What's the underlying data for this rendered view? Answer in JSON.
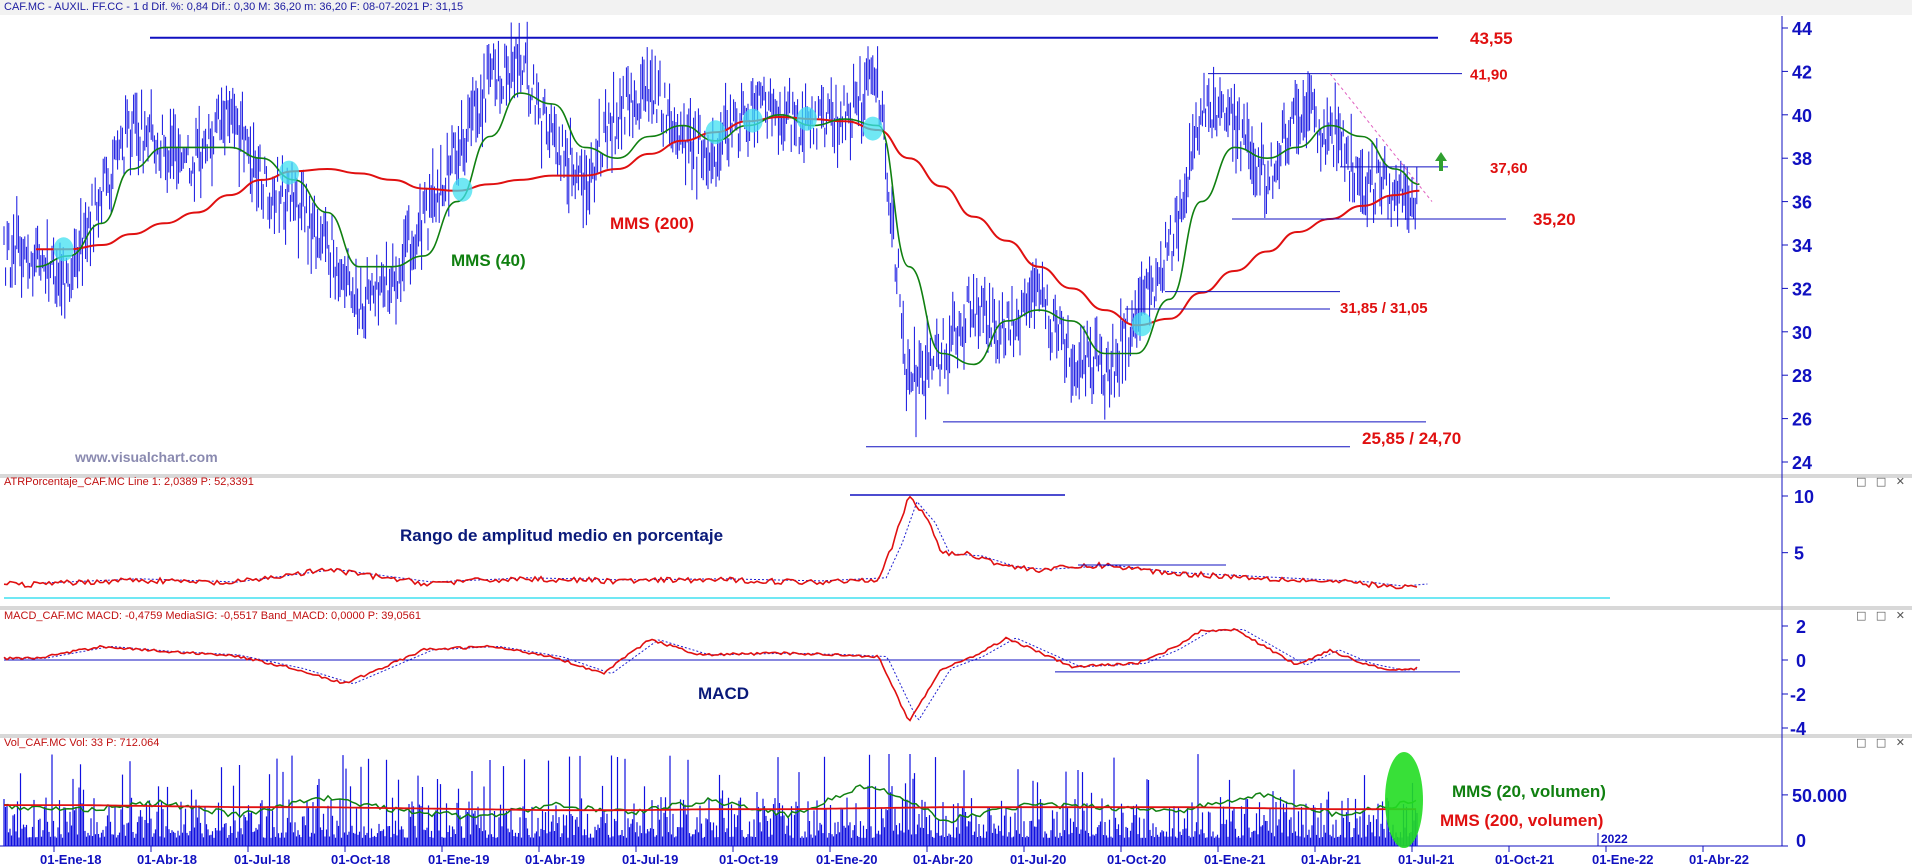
{
  "colors": {
    "price": "#1010e0",
    "mms40": "#108010",
    "mms200": "#e01010",
    "axis": "#1010c0",
    "annot_red": "#e01010",
    "annot_green": "#108010",
    "annot_navy": "#0a1a7a",
    "highlight_cyan": "#40e0f0",
    "highlight_green": "#22dd22",
    "watermark": "#8a8ab0"
  },
  "header": {
    "price": "CAF.MC - AUXIL. FF.CC -  1 d  Dif. %: 0,84  Dif.: 0,30  M: 36,20  m: 36,20  F: 08-07-2021  P: 31,15",
    "atr": "ATRPorcentaje_CAF.MC  Line 1: 2,0389  P: 52,3391",
    "macd": "MACD_CAF.MC  MACD: -0,4759  MediaSIG: -0,5517  Band_MACD: 0,0000  P: 39,0561",
    "vol": "Vol_CAF.MC  Vol: 33  P: 712.064"
  },
  "window_controls": "□ □ ✕",
  "watermark": "www.visualchart.com",
  "annotations": {
    "price_levels": [
      {
        "label": "43,55",
        "value": 43.55
      },
      {
        "label": "41,90",
        "value": 41.9
      },
      {
        "label": "37,60",
        "value": 37.6
      },
      {
        "label": "35,20",
        "value": 35.2
      },
      {
        "label": "31,85 / 31,05",
        "value": 31.45
      },
      {
        "label": "25,85 / 24,70",
        "value": 25.3
      }
    ],
    "mms200_label": "MMS (200)",
    "mms40_label": "MMS (40)",
    "atr_title": "Rango de amplitud medio en porcentaje",
    "macd_title": "MACD",
    "vol_mms20": "MMS (20, volumen)",
    "vol_mms200": "MMS (200, volumen)"
  },
  "chart_data": [
    {
      "type": "line",
      "panel": "price",
      "ylim": [
        24,
        44
      ],
      "yticks": [
        "44",
        "42",
        "40",
        "38",
        "36",
        "34",
        "32",
        "30",
        "28",
        "26",
        "24"
      ],
      "xticks": [
        "01-Ene-18",
        "01-Abr-18",
        "01-Jul-18",
        "01-Oct-18",
        "01-Ene-19",
        "01-Abr-19",
        "01-Jul-19",
        "01-Oct-19",
        "01-Ene-20",
        "01-Abr-20",
        "01-Jul-20",
        "01-Oct-20",
        "01-Ene-21",
        "01-Abr-21",
        "01-Jul-21",
        "01-Oct-21",
        "01-Ene-22",
        "01-Abr-22"
      ],
      "extra_xlabel": "2022",
      "x": [
        "2017-12-15",
        "2018-01-15",
        "2018-02-15",
        "2018-03-15",
        "2018-04-15",
        "2018-05-15",
        "2018-06-15",
        "2018-07-15",
        "2018-08-15",
        "2018-09-15",
        "2018-10-15",
        "2018-11-15",
        "2018-12-15",
        "2019-01-15",
        "2019-02-15",
        "2019-03-15",
        "2019-04-15",
        "2019-05-15",
        "2019-06-15",
        "2019-07-15",
        "2019-08-15",
        "2019-09-15",
        "2019-10-15",
        "2019-11-15",
        "2019-12-15",
        "2020-01-15",
        "2020-02-15",
        "2020-03-15",
        "2020-04-15",
        "2020-05-15",
        "2020-06-15",
        "2020-07-15",
        "2020-08-15",
        "2020-09-15",
        "2020-10-15",
        "2020-11-15",
        "2020-12-15",
        "2021-01-15",
        "2021-02-15",
        "2021-03-15",
        "2021-04-15",
        "2021-05-15",
        "2021-06-15",
        "2021-07-08"
      ],
      "series": [
        {
          "name": "",
          "values": [
            33.5,
            32.5,
            36.5,
            39.5,
            38.5,
            38.0,
            40.0,
            37.0,
            36.0,
            34.0,
            31.5,
            32.5,
            35.0,
            38.5,
            41.5,
            42.5,
            39.0,
            37.0,
            40.0,
            41.5,
            39.0,
            38.0,
            40.5,
            40.0,
            39.5,
            40.0,
            41.5,
            27.5,
            29.0,
            31.0,
            30.0,
            31.5,
            29.0,
            28.0,
            30.5,
            34.0,
            40.0,
            39.5,
            37.0,
            40.5,
            39.0,
            37.0,
            36.5,
            36.2
          ]
        },
        {
          "name": "MMS (40)",
          "values": [
            33.0,
            33.5,
            35.0,
            37.5,
            38.5,
            38.5,
            38.5,
            38.0,
            37.0,
            35.5,
            33.0,
            33.0,
            33.5,
            36.0,
            39.0,
            41.0,
            40.5,
            38.5,
            38.0,
            39.0,
            39.5,
            38.8,
            39.5,
            40.0,
            39.5,
            39.8,
            39.5,
            33.0,
            29.0,
            28.5,
            30.5,
            31.0,
            30.5,
            29.0,
            29.0,
            31.5,
            36.0,
            38.5,
            38.0,
            38.5,
            39.5,
            39.0,
            37.5,
            36.8
          ]
        },
        {
          "name": "MMS (200)",
          "values": [
            33.8,
            33.8,
            34.0,
            34.5,
            35.0,
            35.5,
            36.3,
            37.0,
            37.4,
            37.5,
            37.3,
            37.0,
            36.6,
            36.5,
            36.8,
            37.0,
            37.2,
            37.2,
            37.5,
            38.2,
            38.8,
            39.2,
            39.7,
            39.9,
            39.8,
            39.7,
            39.3,
            38.0,
            36.7,
            35.3,
            34.2,
            33.0,
            32.0,
            31.0,
            30.3,
            30.6,
            31.8,
            32.8,
            33.7,
            34.6,
            35.2,
            35.8,
            36.3,
            36.5
          ]
        }
      ]
    },
    {
      "type": "line",
      "panel": "atr",
      "ylim": [
        1.5,
        10.5
      ],
      "yticks": [
        "10",
        "5"
      ],
      "x": [
        "2017-12-15",
        "2018-03-15",
        "2018-06-15",
        "2018-09-15",
        "2018-12-15",
        "2019-03-15",
        "2019-06-15",
        "2019-09-15",
        "2019-12-15",
        "2020-02-15",
        "2020-03-01",
        "2020-03-15",
        "2020-04-01",
        "2020-04-15",
        "2020-05-15",
        "2020-06-15",
        "2020-07-15",
        "2020-09-15",
        "2020-11-15",
        "2021-01-15",
        "2021-03-15",
        "2021-05-15",
        "2021-06-15",
        "2021-07-08"
      ],
      "series": [
        {
          "name": "Line 1",
          "values": [
            2.2,
            2.6,
            2.3,
            3.5,
            2.3,
            2.7,
            2.5,
            2.6,
            2.4,
            2.7,
            6.0,
            10.0,
            8.0,
            5.0,
            4.8,
            3.8,
            3.5,
            3.9,
            3.2,
            2.9,
            2.6,
            2.3,
            1.9,
            2.1
          ]
        }
      ]
    },
    {
      "type": "line",
      "panel": "macd",
      "ylim": [
        -4.3,
        2.3
      ],
      "yticks": [
        "2",
        "0",
        "-2",
        "-4"
      ],
      "x": [
        "2017-12-15",
        "2018-02-15",
        "2018-04-15",
        "2018-06-15",
        "2018-08-15",
        "2018-10-01",
        "2018-12-15",
        "2019-02-15",
        "2019-04-15",
        "2019-06-01",
        "2019-07-15",
        "2019-09-01",
        "2019-11-15",
        "2020-01-15",
        "2020-02-15",
        "2020-03-15",
        "2020-04-15",
        "2020-05-15",
        "2020-06-15",
        "2020-08-15",
        "2020-10-15",
        "2020-11-15",
        "2020-12-15",
        "2021-01-15",
        "2021-03-15",
        "2021-04-15",
        "2021-05-15",
        "2021-06-15",
        "2021-07-08"
      ],
      "series": [
        {
          "name": "MACD",
          "values": [
            0.1,
            0.8,
            0.5,
            0.3,
            -0.5,
            -1.4,
            0.6,
            0.8,
            0.2,
            -0.8,
            1.2,
            0.3,
            0.4,
            0.3,
            0.2,
            -3.6,
            -0.5,
            0.2,
            1.3,
            -0.4,
            -0.2,
            0.6,
            1.7,
            1.8,
            -0.3,
            0.6,
            -0.2,
            -0.6,
            -0.48
          ]
        }
      ]
    },
    {
      "type": "bar",
      "panel": "volume",
      "ylim": [
        0,
        90000
      ],
      "yticks": [
        "50.000",
        "0"
      ],
      "series": [
        {
          "name": "MMS (20, volumen)",
          "values": [
            38000,
            36000,
            42000,
            30000,
            48000,
            35000,
            28000,
            40000,
            33000,
            45000,
            30000,
            60000,
            25000,
            40000,
            38000,
            35000,
            50000,
            30000,
            45000
          ]
        },
        {
          "name": "MMS (200, volumen)",
          "values": [
            40000,
            40000,
            39000,
            38000,
            38000,
            37000,
            36000,
            35000,
            35000,
            36000,
            36000,
            37000,
            38000,
            38000,
            38000,
            38000,
            37000,
            36000,
            36000
          ]
        }
      ]
    }
  ]
}
